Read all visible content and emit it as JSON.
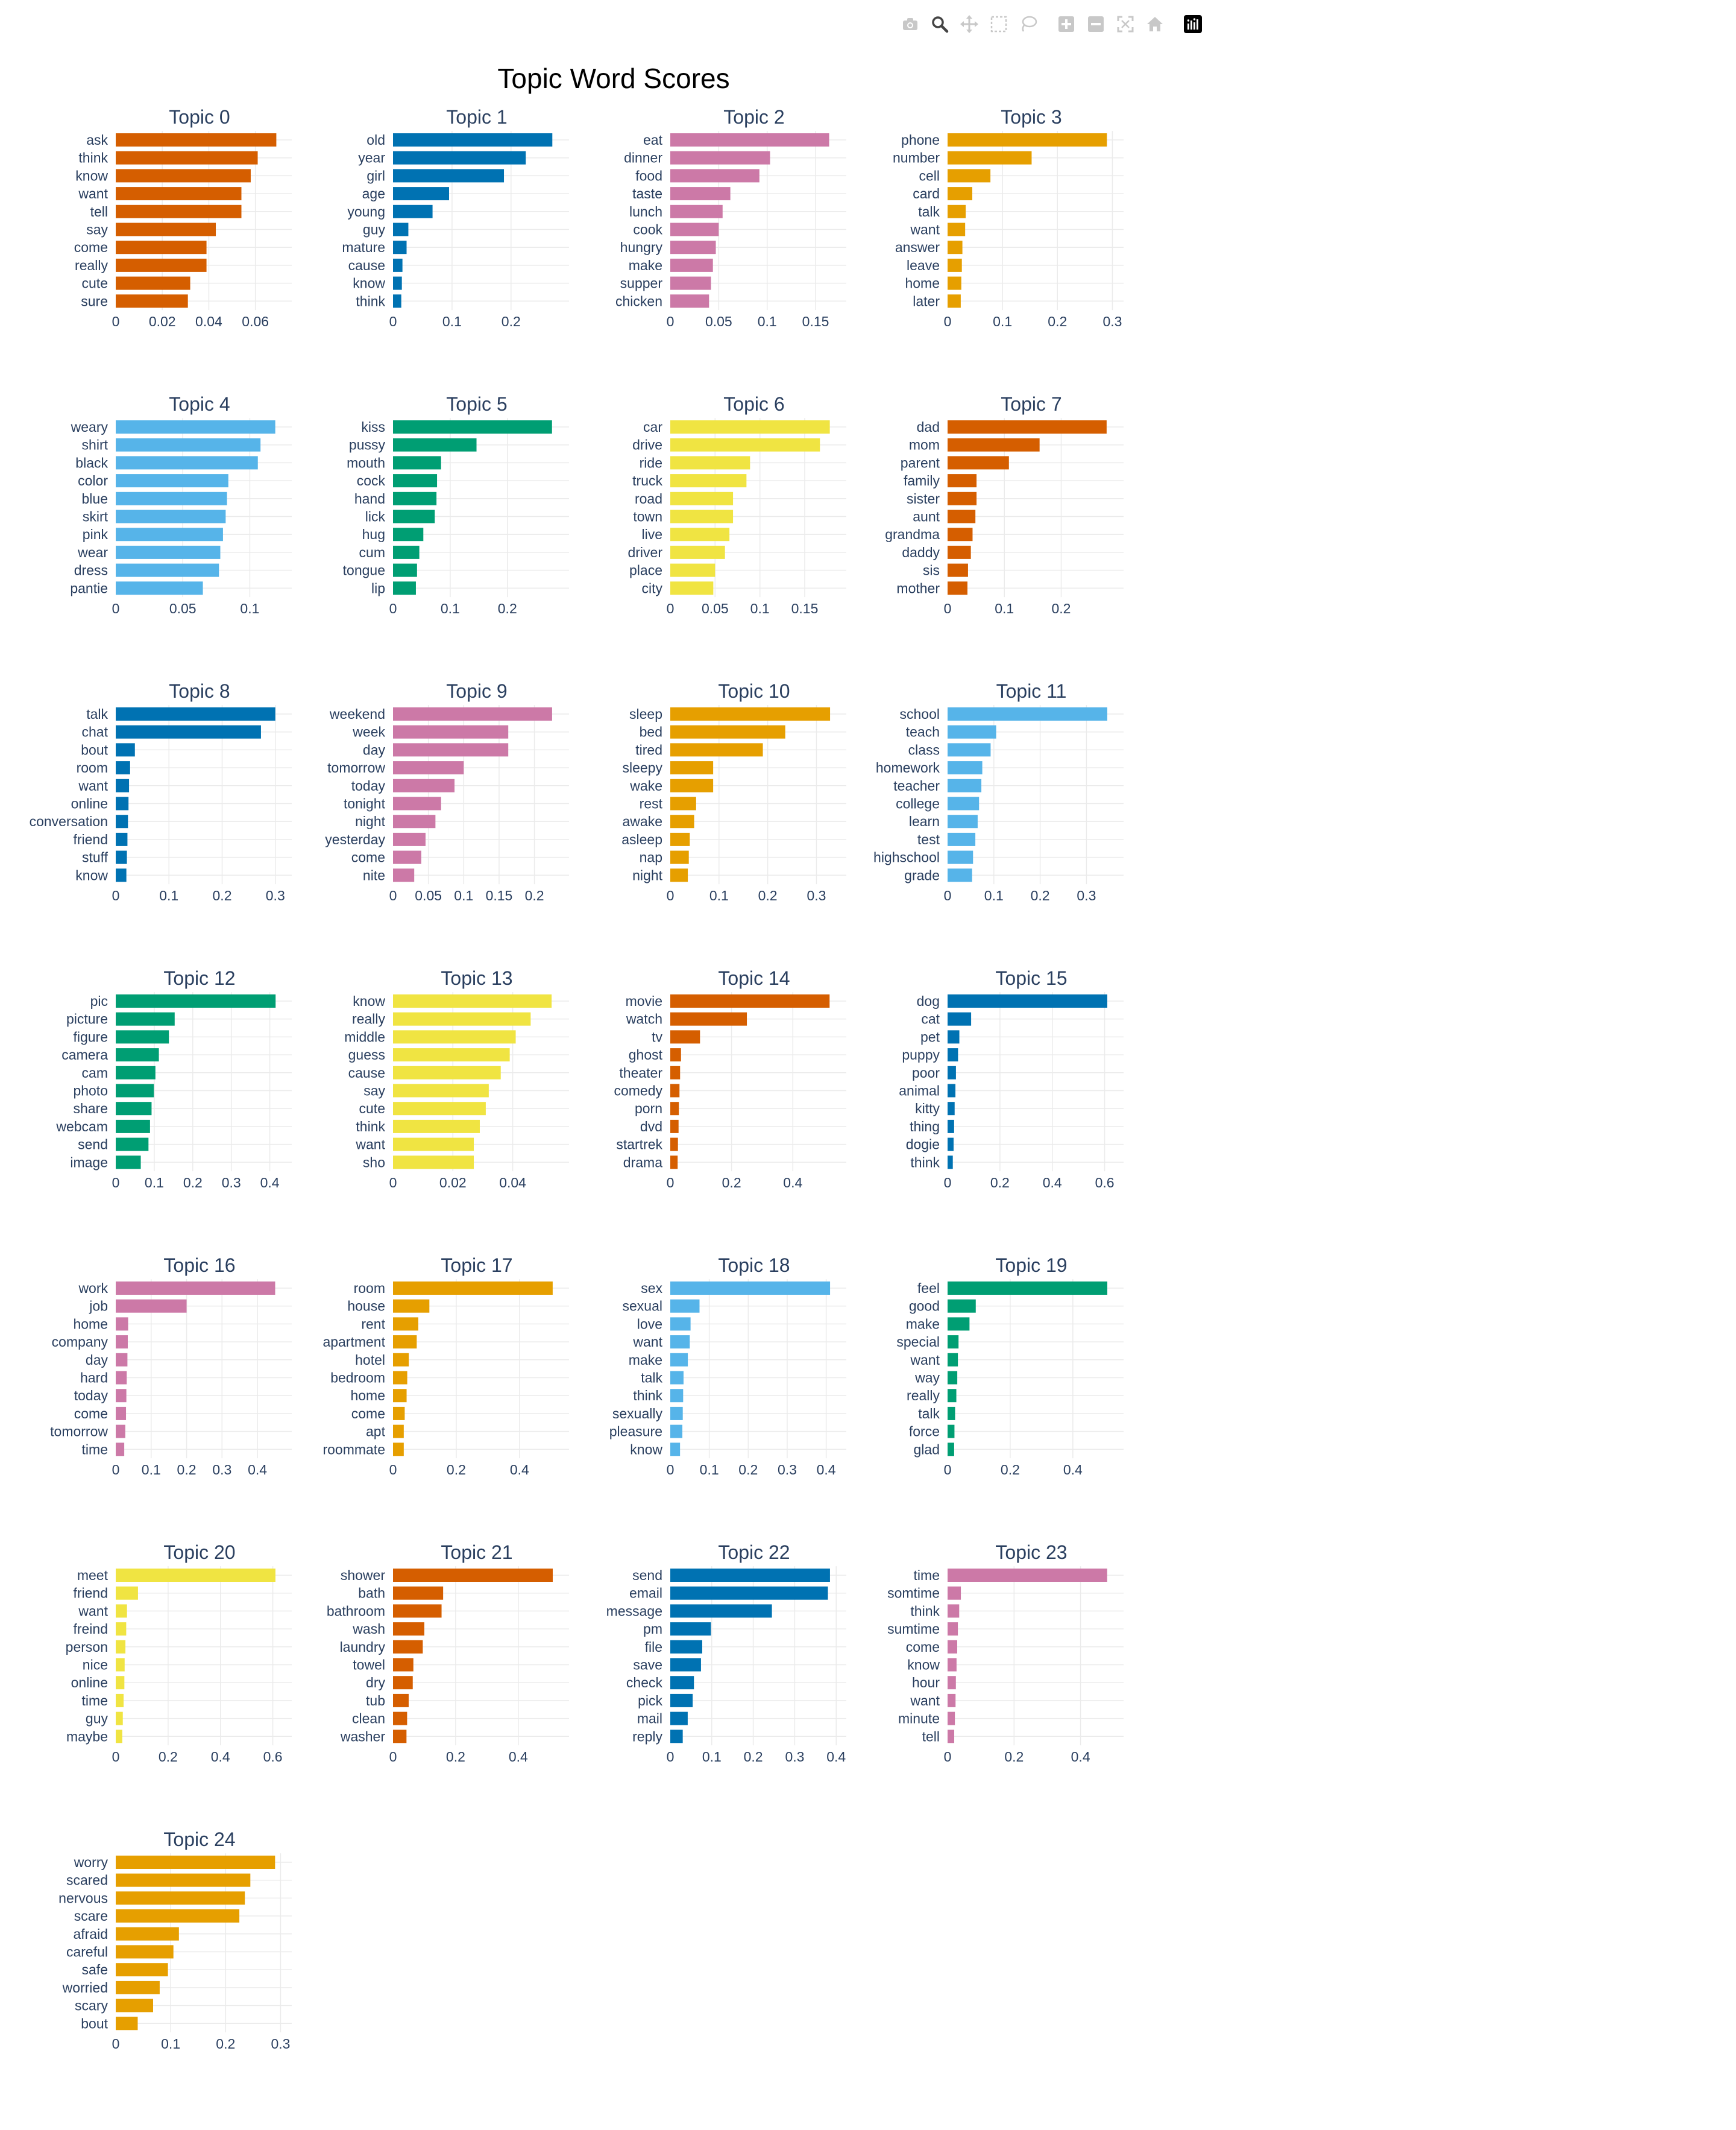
{
  "modebar": {
    "buttons": [
      {
        "name": "camera-icon"
      },
      {
        "name": "zoom-icon",
        "active": true
      },
      {
        "name": "pan-icon"
      },
      {
        "name": "box-select-icon"
      },
      {
        "name": "lasso-select-icon"
      },
      {
        "name": "zoom-in-icon"
      },
      {
        "name": "zoom-out-icon"
      },
      {
        "name": "autoscale-icon"
      },
      {
        "name": "reset-axes-icon"
      },
      {
        "name": "plotly-logo-icon"
      }
    ]
  },
  "chart_data": {
    "type": "bar",
    "orientation": "horizontal",
    "title": "Topic Word Scores",
    "grid": true,
    "colors": {
      "vermillion": "#d55e00",
      "blue": "#0072b2",
      "pink": "#cc79a7",
      "orange": "#e69f00",
      "skyblue": "#56b4e9",
      "green": "#009e73",
      "yellow": "#f0e442"
    },
    "topics": [
      {
        "title": "Topic 0",
        "color": "#d55e00",
        "words": [
          "ask",
          "think",
          "know",
          "want",
          "tell",
          "say",
          "come",
          "really",
          "cute",
          "sure"
        ],
        "values": [
          0.069,
          0.061,
          0.058,
          0.054,
          0.054,
          0.043,
          0.039,
          0.039,
          0.032,
          0.031
        ],
        "ticks": [
          0,
          0.02,
          0.04,
          0.06
        ],
        "tick_labels": [
          "0",
          "0.02",
          "0.04",
          "0.06"
        ],
        "xmax": 0.072
      },
      {
        "title": "Topic 1",
        "color": "#0072b2",
        "words": [
          "old",
          "year",
          "girl",
          "age",
          "young",
          "guy",
          "mature",
          "cause",
          "know",
          "think"
        ],
        "values": [
          0.27,
          0.225,
          0.188,
          0.095,
          0.067,
          0.026,
          0.023,
          0.016,
          0.015,
          0.014
        ],
        "ticks": [
          0,
          0.1,
          0.2
        ],
        "tick_labels": [
          "0",
          "0.1",
          "0.2"
        ],
        "xmax": 0.284
      },
      {
        "title": "Topic 2",
        "color": "#cc79a7",
        "words": [
          "eat",
          "dinner",
          "food",
          "taste",
          "lunch",
          "cook",
          "hungry",
          "make",
          "supper",
          "chicken"
        ],
        "values": [
          0.164,
          0.103,
          0.092,
          0.062,
          0.054,
          0.05,
          0.047,
          0.044,
          0.042,
          0.04
        ],
        "ticks": [
          0,
          0.05,
          0.1,
          0.15
        ],
        "tick_labels": [
          "0",
          "0.05",
          "0.1",
          "0.15"
        ],
        "xmax": 0.173
      },
      {
        "title": "Topic 3",
        "color": "#e69f00",
        "words": [
          "phone",
          "number",
          "cell",
          "card",
          "talk",
          "want",
          "answer",
          "leave",
          "home",
          "later"
        ],
        "values": [
          0.29,
          0.153,
          0.078,
          0.045,
          0.033,
          0.032,
          0.027,
          0.026,
          0.025,
          0.024
        ],
        "ticks": [
          0,
          0.1,
          0.2,
          0.3
        ],
        "tick_labels": [
          "0",
          "0.1",
          "0.2",
          "0.3"
        ],
        "xmax": 0.305
      },
      {
        "title": "Topic 4",
        "color": "#56b4e9",
        "words": [
          "weary",
          "shirt",
          "black",
          "color",
          "blue",
          "skirt",
          "pink",
          "wear",
          "dress",
          "pantie"
        ],
        "values": [
          0.119,
          0.108,
          0.106,
          0.084,
          0.083,
          0.082,
          0.08,
          0.078,
          0.077,
          0.065
        ],
        "ticks": [
          0,
          0.05,
          0.1
        ],
        "tick_labels": [
          "0",
          "0.05",
          "0.1"
        ],
        "xmax": 0.125
      },
      {
        "title": "Topic 5",
        "color": "#009e73",
        "words": [
          "kiss",
          "pussy",
          "mouth",
          "cock",
          "hand",
          "lick",
          "hug",
          "cum",
          "tongue",
          "lip"
        ],
        "values": [
          0.278,
          0.146,
          0.084,
          0.077,
          0.076,
          0.073,
          0.053,
          0.046,
          0.042,
          0.04
        ],
        "ticks": [
          0,
          0.1,
          0.2
        ],
        "tick_labels": [
          "0",
          "0.1",
          "0.2"
        ],
        "xmax": 0.293
      },
      {
        "title": "Topic 6",
        "color": "#f0e442",
        "words": [
          "car",
          "drive",
          "ride",
          "truck",
          "road",
          "town",
          "live",
          "driver",
          "place",
          "city"
        ],
        "values": [
          0.178,
          0.167,
          0.089,
          0.085,
          0.07,
          0.07,
          0.066,
          0.061,
          0.05,
          0.048
        ],
        "ticks": [
          0,
          0.05,
          0.1,
          0.15
        ],
        "tick_labels": [
          "0",
          "0.05",
          "0.1",
          "0.15"
        ],
        "xmax": 0.187
      },
      {
        "title": "Topic 7",
        "color": "#d55e00",
        "words": [
          "dad",
          "mom",
          "parent",
          "family",
          "sister",
          "aunt",
          "grandma",
          "daddy",
          "sis",
          "mother"
        ],
        "values": [
          0.28,
          0.162,
          0.108,
          0.051,
          0.051,
          0.049,
          0.044,
          0.041,
          0.036,
          0.035
        ],
        "ticks": [
          0,
          0.1,
          0.2
        ],
        "tick_labels": [
          "0",
          "0.1",
          "0.2"
        ],
        "xmax": 0.295
      },
      {
        "title": "Topic 8",
        "color": "#0072b2",
        "words": [
          "talk",
          "chat",
          "bout",
          "room",
          "want",
          "online",
          "conversation",
          "friend",
          "stuff",
          "know"
        ],
        "values": [
          0.3,
          0.273,
          0.036,
          0.027,
          0.025,
          0.024,
          0.023,
          0.022,
          0.021,
          0.02
        ],
        "ticks": [
          0,
          0.1,
          0.2,
          0.3
        ],
        "tick_labels": [
          "0",
          "0.1",
          "0.2",
          "0.3"
        ],
        "xmax": 0.315
      },
      {
        "title": "Topic 9",
        "color": "#cc79a7",
        "words": [
          "weekend",
          "week",
          "day",
          "tomorrow",
          "today",
          "tonight",
          "night",
          "yesterday",
          "come",
          "nite"
        ],
        "values": [
          0.225,
          0.163,
          0.163,
          0.1,
          0.087,
          0.068,
          0.06,
          0.046,
          0.04,
          0.03
        ],
        "ticks": [
          0,
          0.05,
          0.1,
          0.15,
          0.2
        ],
        "tick_labels": [
          "0",
          "0.05",
          "0.1",
          "0.15",
          "0.2"
        ],
        "xmax": 0.237
      },
      {
        "title": "Topic 10",
        "color": "#e69f00",
        "words": [
          "sleep",
          "bed",
          "tired",
          "sleepy",
          "wake",
          "rest",
          "awake",
          "asleep",
          "nap",
          "night"
        ],
        "values": [
          0.328,
          0.236,
          0.19,
          0.088,
          0.088,
          0.053,
          0.049,
          0.04,
          0.038,
          0.036
        ],
        "ticks": [
          0,
          0.1,
          0.2,
          0.3
        ],
        "tick_labels": [
          "0",
          "0.1",
          "0.2",
          "0.3"
        ],
        "xmax": 0.344
      },
      {
        "title": "Topic 11",
        "color": "#56b4e9",
        "words": [
          "school",
          "teach",
          "class",
          "homework",
          "teacher",
          "college",
          "learn",
          "test",
          "highschool",
          "grade"
        ],
        "values": [
          0.345,
          0.105,
          0.093,
          0.075,
          0.073,
          0.068,
          0.065,
          0.06,
          0.055,
          0.053
        ],
        "ticks": [
          0,
          0.1,
          0.2,
          0.3
        ],
        "tick_labels": [
          "0",
          "0.1",
          "0.2",
          "0.3"
        ],
        "xmax": 0.362
      },
      {
        "title": "Topic 12",
        "color": "#009e73",
        "words": [
          "pic",
          "picture",
          "figure",
          "camera",
          "cam",
          "photo",
          "share",
          "webcam",
          "send",
          "image"
        ],
        "values": [
          0.415,
          0.153,
          0.138,
          0.112,
          0.103,
          0.099,
          0.093,
          0.089,
          0.085,
          0.065
        ],
        "ticks": [
          0,
          0.1,
          0.2,
          0.3,
          0.4
        ],
        "tick_labels": [
          "0",
          "0.1",
          "0.2",
          "0.3",
          "0.4"
        ],
        "xmax": 0.435
      },
      {
        "title": "Topic 13",
        "color": "#f0e442",
        "words": [
          "know",
          "really",
          "middle",
          "guess",
          "cause",
          "say",
          "cute",
          "think",
          "want",
          "sho"
        ],
        "values": [
          0.053,
          0.046,
          0.041,
          0.039,
          0.036,
          0.032,
          0.031,
          0.029,
          0.027,
          0.027
        ],
        "ticks": [
          0,
          0.02,
          0.04
        ],
        "tick_labels": [
          "0",
          "0.02",
          "0.04"
        ],
        "xmax": 0.056
      },
      {
        "title": "Topic 14",
        "color": "#d55e00",
        "words": [
          "movie",
          "watch",
          "tv",
          "ghost",
          "theater",
          "comedy",
          "porn",
          "dvd",
          "startrek",
          "drama"
        ],
        "values": [
          0.52,
          0.25,
          0.097,
          0.035,
          0.032,
          0.03,
          0.028,
          0.027,
          0.025,
          0.024
        ],
        "ticks": [
          0,
          0.2,
          0.4
        ],
        "tick_labels": [
          "0",
          "0.2",
          "0.4"
        ],
        "xmax": 0.547
      },
      {
        "title": "Topic 15",
        "color": "#0072b2",
        "words": [
          "dog",
          "cat",
          "pet",
          "puppy",
          "poor",
          "animal",
          "kitty",
          "thing",
          "dogie",
          "think"
        ],
        "values": [
          0.61,
          0.09,
          0.045,
          0.04,
          0.032,
          0.03,
          0.027,
          0.025,
          0.023,
          0.02
        ],
        "ticks": [
          0,
          0.2,
          0.4,
          0.6
        ],
        "tick_labels": [
          "0",
          "0.2",
          "0.4",
          "0.6"
        ],
        "xmax": 0.64
      },
      {
        "title": "Topic 16",
        "color": "#cc79a7",
        "words": [
          "work",
          "job",
          "home",
          "company",
          "day",
          "hard",
          "today",
          "come",
          "tomorrow",
          "time"
        ],
        "values": [
          0.45,
          0.2,
          0.035,
          0.034,
          0.033,
          0.031,
          0.03,
          0.029,
          0.027,
          0.024
        ],
        "ticks": [
          0,
          0.1,
          0.2,
          0.3,
          0.4
        ],
        "tick_labels": [
          "0",
          "0.1",
          "0.2",
          "0.3",
          "0.4"
        ],
        "xmax": 0.473
      },
      {
        "title": "Topic 17",
        "color": "#e69f00",
        "words": [
          "room",
          "house",
          "rent",
          "apartment",
          "hotel",
          "bedroom",
          "home",
          "come",
          "apt",
          "roommate"
        ],
        "values": [
          0.505,
          0.115,
          0.08,
          0.075,
          0.05,
          0.045,
          0.043,
          0.037,
          0.034,
          0.034
        ],
        "ticks": [
          0,
          0.2,
          0.4
        ],
        "tick_labels": [
          "0",
          "0.2",
          "0.4"
        ],
        "xmax": 0.53
      },
      {
        "title": "Topic 18",
        "color": "#56b4e9",
        "words": [
          "sex",
          "sexual",
          "love",
          "want",
          "make",
          "talk",
          "think",
          "sexually",
          "pleasure",
          "know"
        ],
        "values": [
          0.41,
          0.075,
          0.052,
          0.05,
          0.045,
          0.034,
          0.033,
          0.032,
          0.031,
          0.025
        ],
        "ticks": [
          0,
          0.1,
          0.2,
          0.3,
          0.4
        ],
        "tick_labels": [
          "0",
          "0.1",
          "0.2",
          "0.3",
          "0.4"
        ],
        "xmax": 0.43
      },
      {
        "title": "Topic 19",
        "color": "#009e73",
        "words": [
          "feel",
          "good",
          "make",
          "special",
          "want",
          "way",
          "really",
          "talk",
          "force",
          "glad"
        ],
        "values": [
          0.51,
          0.09,
          0.07,
          0.035,
          0.033,
          0.031,
          0.028,
          0.024,
          0.022,
          0.021
        ],
        "ticks": [
          0,
          0.2,
          0.4
        ],
        "tick_labels": [
          "0",
          "0.2",
          "0.4"
        ],
        "xmax": 0.535
      },
      {
        "title": "Topic 20",
        "color": "#f0e442",
        "words": [
          "meet",
          "friend",
          "want",
          "freind",
          "person",
          "nice",
          "online",
          "time",
          "guy",
          "maybe"
        ],
        "values": [
          0.61,
          0.085,
          0.043,
          0.04,
          0.037,
          0.034,
          0.033,
          0.03,
          0.027,
          0.025
        ],
        "ticks": [
          0,
          0.2,
          0.4,
          0.6
        ],
        "tick_labels": [
          "0",
          "0.2",
          "0.4",
          "0.6"
        ],
        "xmax": 0.64
      },
      {
        "title": "Topic 21",
        "color": "#d55e00",
        "words": [
          "shower",
          "bath",
          "bathroom",
          "wash",
          "laundry",
          "towel",
          "dry",
          "tub",
          "clean",
          "washer"
        ],
        "values": [
          0.51,
          0.16,
          0.155,
          0.1,
          0.095,
          0.065,
          0.063,
          0.05,
          0.045,
          0.043
        ],
        "ticks": [
          0,
          0.2,
          0.4
        ],
        "tick_labels": [
          "0",
          "0.2",
          "0.4"
        ],
        "xmax": 0.535
      },
      {
        "title": "Topic 22",
        "color": "#0072b2",
        "words": [
          "send",
          "email",
          "message",
          "pm",
          "file",
          "save",
          "check",
          "pick",
          "mail",
          "reply"
        ],
        "values": [
          0.385,
          0.38,
          0.245,
          0.098,
          0.077,
          0.074,
          0.057,
          0.054,
          0.042,
          0.03
        ],
        "ticks": [
          0,
          0.1,
          0.2,
          0.3,
          0.4
        ],
        "tick_labels": [
          "0",
          "0.1",
          "0.2",
          "0.3",
          "0.4"
        ],
        "xmax": 0.404
      },
      {
        "title": "Topic 23",
        "color": "#cc79a7",
        "words": [
          "time",
          "somtime",
          "think",
          "sumtime",
          "come",
          "know",
          "hour",
          "want",
          "minute",
          "tell"
        ],
        "values": [
          0.48,
          0.04,
          0.035,
          0.031,
          0.029,
          0.027,
          0.025,
          0.024,
          0.022,
          0.02
        ],
        "ticks": [
          0,
          0.2,
          0.4
        ],
        "tick_labels": [
          "0",
          "0.2",
          "0.4"
        ],
        "xmax": 0.504
      },
      {
        "title": "Topic 24",
        "color": "#e69f00",
        "words": [
          "worry",
          "scared",
          "nervous",
          "scare",
          "afraid",
          "careful",
          "safe",
          "worried",
          "scary",
          "bout"
        ],
        "values": [
          0.29,
          0.245,
          0.235,
          0.225,
          0.115,
          0.105,
          0.095,
          0.08,
          0.068,
          0.04
        ],
        "ticks": [
          0,
          0.1,
          0.2,
          0.3
        ],
        "tick_labels": [
          "0",
          "0.1",
          "0.2",
          "0.3"
        ],
        "xmax": 0.305
      }
    ]
  }
}
